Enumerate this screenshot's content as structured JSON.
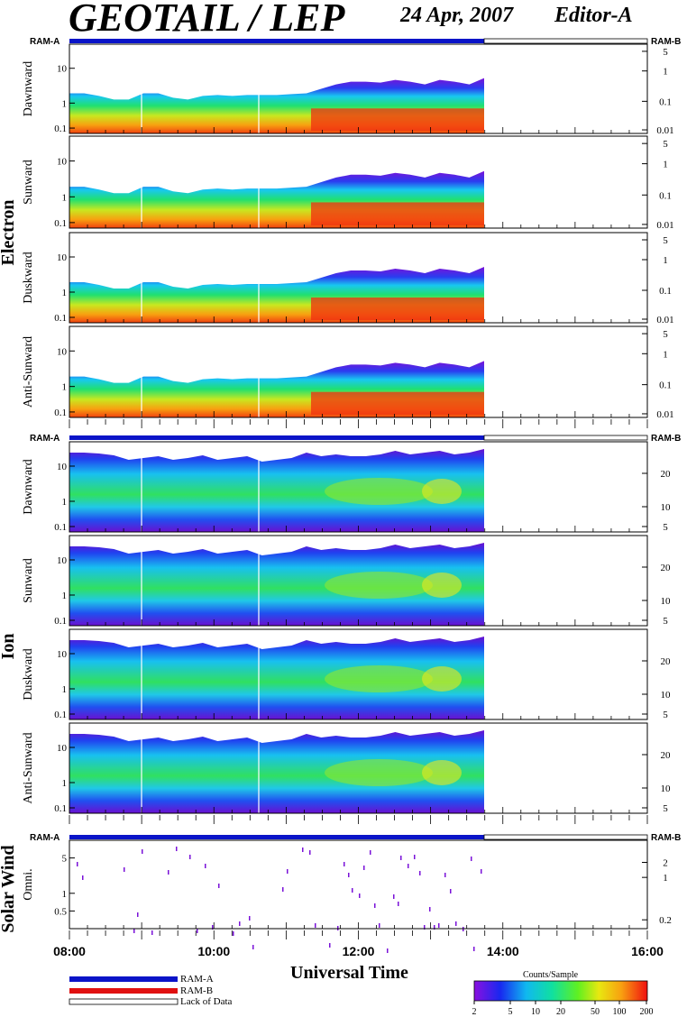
{
  "header": {
    "title": "GEOTAIL / LEP",
    "date": "24 Apr, 2007",
    "editor": "Editor-A"
  },
  "axis": {
    "xlabel": "Universal Time",
    "xticks": [
      "08:00",
      "10:00",
      "12:00",
      "14:00",
      "16:00"
    ]
  },
  "groups": [
    {
      "name": "Electron",
      "panels": [
        "Dawnward",
        "Sunward",
        "Duskward",
        "Anti-Sunward"
      ],
      "left_ticks": [
        "10",
        "1",
        "0.1"
      ],
      "right_ticks": [
        "5",
        "1",
        "0.1",
        "0.01"
      ]
    },
    {
      "name": "Ion",
      "panels": [
        "Dawnward",
        "Sunward",
        "Duskward",
        "Anti-Sunward"
      ],
      "left_ticks": [
        "10",
        "1",
        "0.1"
      ],
      "right_ticks": [
        "20",
        "10",
        "5"
      ]
    },
    {
      "name": "Solar Wind",
      "panels": [
        "Omni."
      ],
      "left_ticks": [
        "5",
        "1",
        "0.5"
      ],
      "right_ticks": [
        "2",
        "1",
        "0.2"
      ]
    }
  ],
  "ram_labels": {
    "a": "RAM-A",
    "b": "RAM-B"
  },
  "legend": {
    "ram_a": "RAM-A",
    "ram_b": "RAM-B",
    "lack": "Lack of Data"
  },
  "colorbar": {
    "title": "Counts/Sample",
    "ticks": [
      "2",
      "5",
      "10",
      "20",
      "50",
      "100",
      "200"
    ]
  },
  "colors": {
    "ram_a": "#0a14c8",
    "ram_b": "#e01010"
  },
  "chart_data": {
    "type": "heatmap",
    "x_range": [
      "08:00",
      "16:00"
    ],
    "data_coverage": [
      "08:00",
      "13:45"
    ],
    "electron_upper_envelope_rel": [
      0.55,
      0.55,
      0.58,
      0.62,
      0.62,
      0.55,
      0.55,
      0.6,
      0.62,
      0.58,
      0.57,
      0.58,
      0.57,
      0.57,
      0.57,
      0.56,
      0.55,
      0.5,
      0.45,
      0.42,
      0.42,
      0.43,
      0.4,
      0.42,
      0.45,
      0.4,
      0.42,
      0.45,
      0.38
    ],
    "ion_upper_envelope_rel": [
      0.12,
      0.12,
      0.13,
      0.15,
      0.2,
      0.18,
      0.16,
      0.2,
      0.18,
      0.15,
      0.2,
      0.18,
      0.16,
      0.22,
      0.2,
      0.18,
      0.12,
      0.16,
      0.14,
      0.16,
      0.16,
      0.14,
      0.1,
      0.14,
      0.12,
      0.1,
      0.14,
      0.12,
      0.08
    ]
  }
}
